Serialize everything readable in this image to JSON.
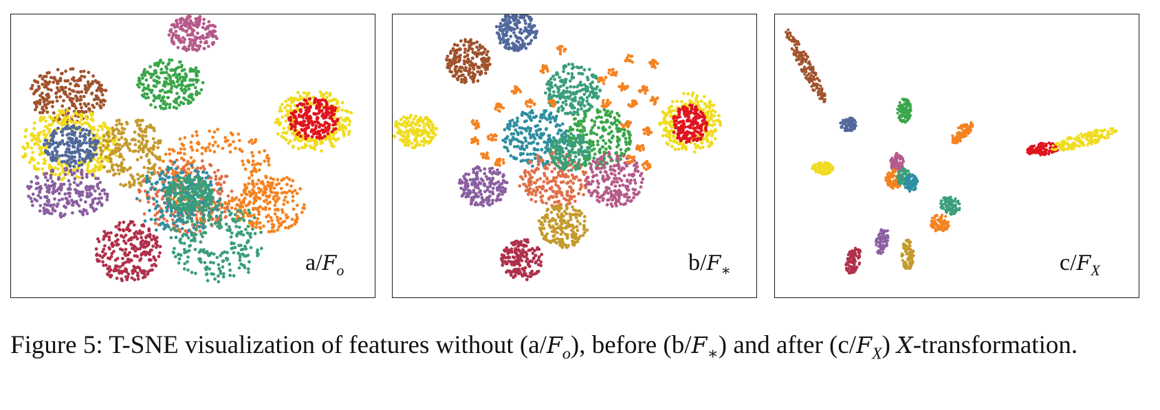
{
  "panels": [
    {
      "id": "a",
      "label": "a/",
      "symbol": "F",
      "sub": "o"
    },
    {
      "id": "b",
      "label": "b/",
      "symbol": "F",
      "sub": "∗"
    },
    {
      "id": "c",
      "label": "c/",
      "symbol": "F",
      "sub": "X"
    }
  ],
  "caption": {
    "prefix": "Figure 5:",
    "text_1": " T-SNE visualization of features without (a/",
    "text_2": "), before (b/",
    "text_3": ") and after (c/",
    "text_4": ") ",
    "text_5": "-transformation.",
    "sym_F": "F",
    "sub_o": "o",
    "sub_star": "∗",
    "sub_x": "X",
    "sym_X": "X"
  },
  "palette": {
    "brown": "#a0522d",
    "pink": "#b55a8a",
    "green": "#3aa64a",
    "yellow": "#f0dc1e",
    "navy": "#52689c",
    "red": "#e0141e",
    "olive": "#c49a2c",
    "orange": "#f58220",
    "teal": "#2e8fa0",
    "seagreen": "#3a9e7a",
    "purple": "#8a5fa0",
    "crimson": "#b0304a",
    "salmon": "#e0704a"
  }
}
